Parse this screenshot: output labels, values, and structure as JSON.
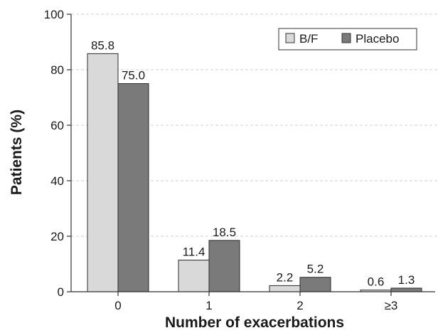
{
  "chart_data": {
    "type": "bar",
    "categories": [
      "0",
      "1",
      "2",
      "≥3"
    ],
    "series": [
      {
        "name": "B/F",
        "values": [
          85.8,
          11.4,
          2.2,
          0.6
        ],
        "color": "#d9d9d9"
      },
      {
        "name": "Placebo",
        "values": [
          75.0,
          18.5,
          5.2,
          1.3
        ],
        "color": "#7a7a7a"
      }
    ],
    "data_labels": [
      [
        "85.8",
        "11.4",
        "2.2",
        "0.6"
      ],
      [
        "75.0",
        "18.5",
        "5.2",
        "1.3"
      ]
    ],
    "xlabel": "Number of exacerbations",
    "ylabel": "Patients (%)",
    "ylim": [
      0,
      100
    ],
    "yticks": [
      "0",
      "20",
      "40",
      "60",
      "80",
      "100"
    ],
    "grid": "horizontal dashed",
    "legend_position": "top-right"
  }
}
